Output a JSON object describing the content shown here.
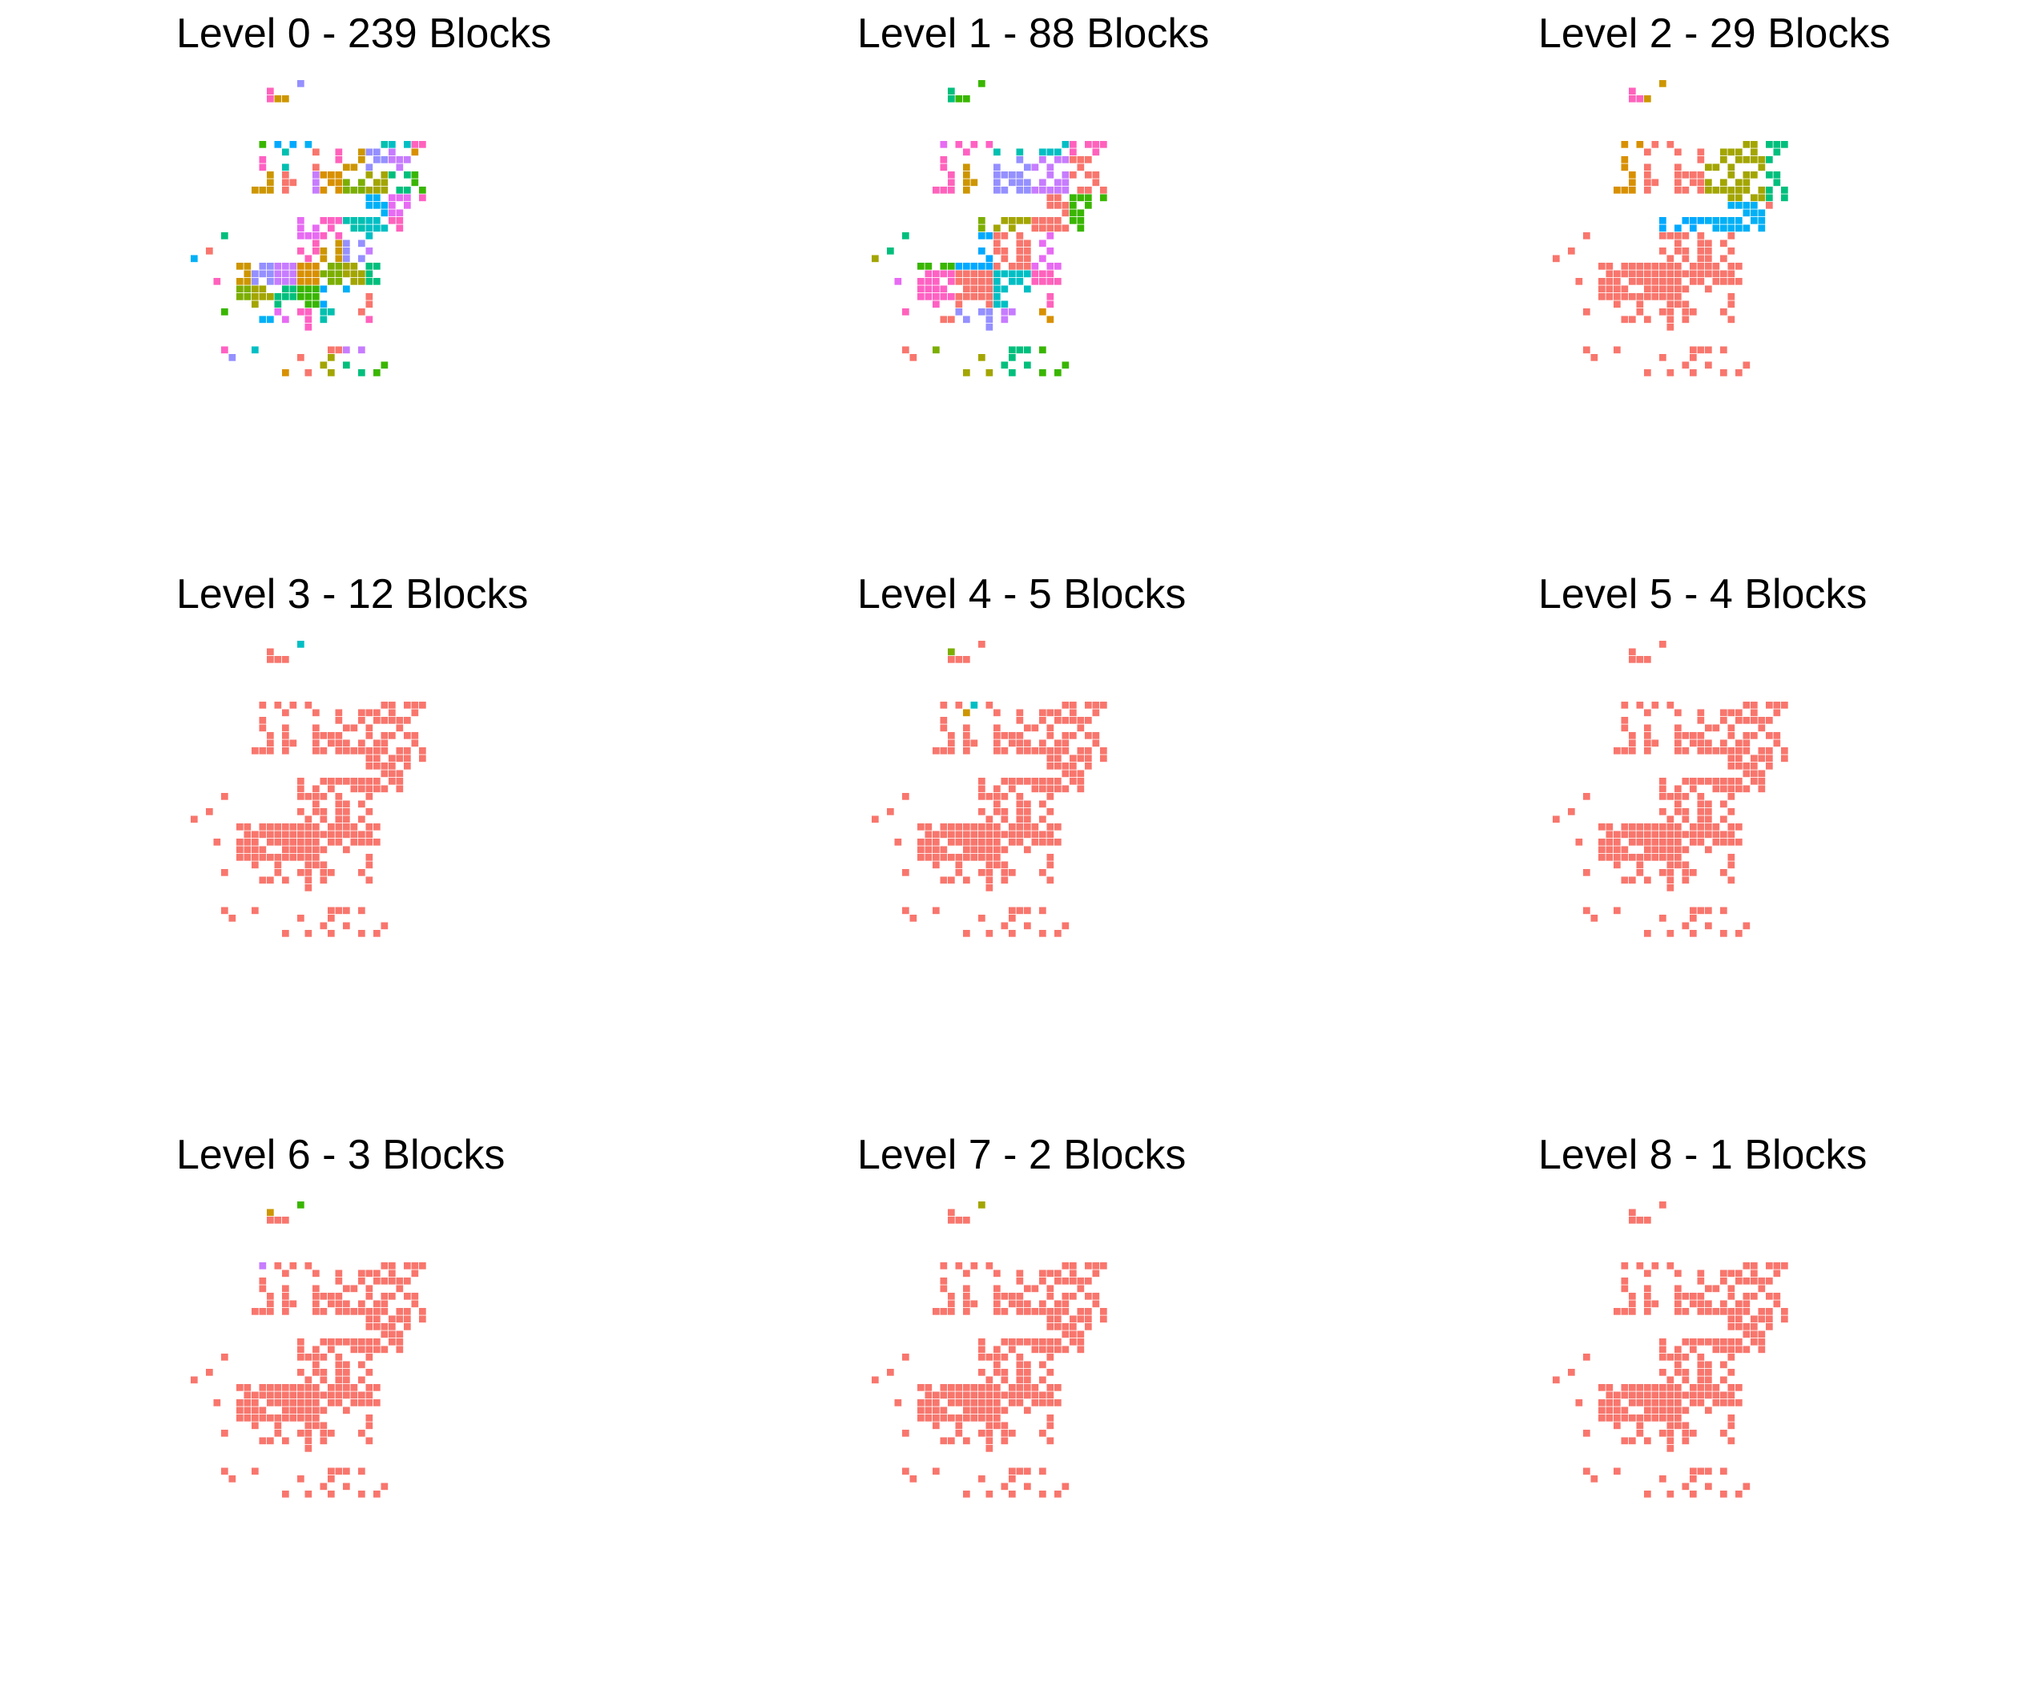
{
  "figure": {
    "panels": [
      {
        "title": "Level 0 - 239 Blocks",
        "color_mode": "multi"
      },
      {
        "title": "Level 1 - 88 Blocks",
        "color_mode": "multi"
      },
      {
        "title": "Level 2 - 29 Blocks",
        "color_mode": "mostly-red"
      },
      {
        "title": "Level 3 - 12 Blocks",
        "color_mode": "red-with-few"
      },
      {
        "title": "Level 4 - 5 Blocks",
        "color_mode": "red-with-few"
      },
      {
        "title": "Level 5 - 4 Blocks",
        "color_mode": "red-with-few"
      },
      {
        "title": "Level 6 - 3 Blocks",
        "color_mode": "red-with-few"
      },
      {
        "title": "Level 7 - 2 Blocks",
        "color_mode": "red-with-few"
      },
      {
        "title": "Level 8 - 1 Blocks",
        "color_mode": "red"
      }
    ]
  },
  "chart_data": {
    "type": "heatmap",
    "levels": [
      0,
      1,
      2,
      3,
      4,
      5,
      6,
      7,
      8
    ],
    "block_counts": [
      239,
      88,
      29,
      12,
      5,
      4,
      3,
      2,
      1
    ],
    "dominant_color": "#F8766D",
    "palette": [
      "#F8766D",
      "#E76BF3",
      "#00A9FF",
      "#00BF7D",
      "#7CAE00",
      "#C77CFF",
      "#CD9600",
      "#00BFC4",
      "#FF61C3",
      "#00B0F6",
      "#39B600",
      "#A3A500",
      "#D89000",
      "#9590FF",
      "#FF62BC",
      "#00C0AF"
    ],
    "axes_visible": false,
    "grid": false,
    "legend": "none"
  }
}
